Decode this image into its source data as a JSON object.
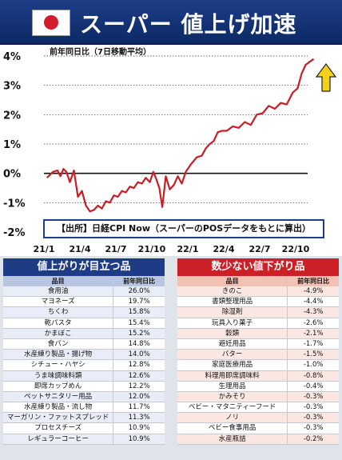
{
  "header": {
    "title": "スーパー 値上げ加速",
    "flag_colors": {
      "field": "#ffffff",
      "disc": "#d21b2c"
    }
  },
  "chart_data": {
    "type": "line",
    "title": "前年同日比（7日移動平均）",
    "ylabel": "",
    "xlabel": "",
    "unit": "%",
    "ylim": [
      -2,
      4
    ],
    "yticks": [
      -2,
      -1,
      0,
      1,
      2,
      3,
      4
    ],
    "ytick_labels": [
      "-2%",
      "-1%",
      "0%",
      "1%",
      "2%",
      "3%",
      "4%"
    ],
    "xticks": [
      "21/1",
      "21/4",
      "21/7",
      "21/10",
      "22/1",
      "22/4",
      "22/7",
      "22/10"
    ],
    "x_start": "21/1",
    "x_end": "22/11",
    "grid": "horizontal dotted",
    "line_color": "#c91d26",
    "annotation": "up-arrow-icon",
    "source_note": "【出所】日経CPI Now（スーパーのPOSデータをもとに算出）",
    "series": [
      {
        "values": [
          [
            "21/1",
            -0.15
          ],
          [
            "21/1",
            0.05
          ],
          [
            "21/2",
            0.1
          ],
          [
            "21/2",
            -0.1
          ],
          [
            "21/2",
            0.15
          ],
          [
            "21/2",
            0.05
          ],
          [
            "21/3",
            -0.3
          ],
          [
            "21/3",
            0.1
          ],
          [
            "21/3",
            -0.8
          ],
          [
            "21/4",
            -0.6
          ],
          [
            "21/4",
            -1.1
          ],
          [
            "21/4",
            -1.3
          ],
          [
            "21/5",
            -1.25
          ],
          [
            "21/5",
            -1.1
          ],
          [
            "21/5",
            -1.2
          ],
          [
            "21/6",
            -0.95
          ],
          [
            "21/6",
            -1.0
          ],
          [
            "21/6",
            -0.75
          ],
          [
            "21/7",
            -0.8
          ],
          [
            "21/7",
            -0.6
          ],
          [
            "21/7",
            -0.65
          ],
          [
            "21/8",
            -0.45
          ],
          [
            "21/8",
            -0.5
          ],
          [
            "21/8",
            -0.3
          ],
          [
            "21/9",
            -0.35
          ],
          [
            "21/9",
            -0.15
          ],
          [
            "21/9",
            -0.3
          ],
          [
            "21/10",
            0.05
          ],
          [
            "21/10",
            -0.2
          ],
          [
            "21/10",
            -0.5
          ],
          [
            "21/10",
            -1.15
          ],
          [
            "21/11",
            -0.1
          ],
          [
            "21/11",
            -0.55
          ],
          [
            "21/11",
            -0.4
          ],
          [
            "21/12",
            -0.1
          ],
          [
            "21/12",
            -0.35
          ],
          [
            "21/12",
            0.05
          ],
          [
            "22/1",
            0.3
          ],
          [
            "22/1",
            0.55
          ],
          [
            "22/2",
            0.6
          ],
          [
            "22/2",
            0.85
          ],
          [
            "22/2",
            1.0
          ],
          [
            "22/3",
            1.1
          ],
          [
            "22/3",
            1.4
          ],
          [
            "22/3",
            1.45
          ],
          [
            "22/4",
            1.45
          ],
          [
            "22/4",
            1.6
          ],
          [
            "22/5",
            1.55
          ],
          [
            "22/5",
            1.75
          ],
          [
            "22/6",
            1.65
          ],
          [
            "22/6",
            2.0
          ],
          [
            "22/7",
            2.05
          ],
          [
            "22/7",
            2.3
          ],
          [
            "22/8",
            2.2
          ],
          [
            "22/8",
            2.4
          ],
          [
            "22/9",
            2.35
          ],
          [
            "22/9",
            2.75
          ],
          [
            "22/10",
            2.9
          ],
          [
            "22/10",
            3.4
          ],
          [
            "22/10",
            3.7
          ],
          [
            "22/11",
            3.9
          ]
        ]
      }
    ]
  },
  "left_table": {
    "title": "値上がりが目立つ品",
    "col_item": "品目",
    "col_value": "前年同日比",
    "rows": [
      {
        "name": "食用油",
        "value": "26.0%"
      },
      {
        "name": "マヨネーズ",
        "value": "19.7%"
      },
      {
        "name": "ちくわ",
        "value": "15.8%"
      },
      {
        "name": "乾パスタ",
        "value": "15.4%"
      },
      {
        "name": "かまぼこ",
        "value": "15.2%"
      },
      {
        "name": "食パン",
        "value": "14.8%"
      },
      {
        "name": "水産練り製品・揚げ物",
        "value": "14.0%"
      },
      {
        "name": "シチュー・ハヤシ",
        "value": "12.8%"
      },
      {
        "name": "うま味調味料類",
        "value": "12.6%"
      },
      {
        "name": "即席カップめん",
        "value": "12.2%"
      },
      {
        "name": "ペットサニタリー用品",
        "value": "12.0%"
      },
      {
        "name": "水産練り製品・流し物",
        "value": "11.7%"
      },
      {
        "name": "マーガリン・ファットスプレッド",
        "value": "11.3%"
      },
      {
        "name": "プロセスチーズ",
        "value": "10.9%"
      },
      {
        "name": "レギュラーコーヒー",
        "value": "10.9%"
      }
    ]
  },
  "right_table": {
    "title": "数少ない値下がり品",
    "col_item": "品目",
    "col_value": "前年同日比",
    "rows": [
      {
        "name": "きのこ",
        "value": "-4.9%"
      },
      {
        "name": "書類整理用品",
        "value": "-4.4%"
      },
      {
        "name": "除湿剤",
        "value": "-4.3%"
      },
      {
        "name": "玩具入り菓子",
        "value": "-2.6%"
      },
      {
        "name": "穀類",
        "value": "-2.1%"
      },
      {
        "name": "避妊用品",
        "value": "-1.7%"
      },
      {
        "name": "バター",
        "value": "-1.5%"
      },
      {
        "name": "家庭医療用品",
        "value": "-1.0%"
      },
      {
        "name": "料理用即席調味料",
        "value": "-0.8%"
      },
      {
        "name": "生理用品",
        "value": "-0.4%"
      },
      {
        "name": "かみそり",
        "value": "-0.3%"
      },
      {
        "name": "ベビー・マタニティーフード",
        "value": "-0.3%"
      },
      {
        "name": "ノリ",
        "value": "-0.3%"
      },
      {
        "name": "ベビー食事用品",
        "value": "-0.3%"
      },
      {
        "name": "水産瓶詰",
        "value": "-0.2%"
      }
    ]
  }
}
